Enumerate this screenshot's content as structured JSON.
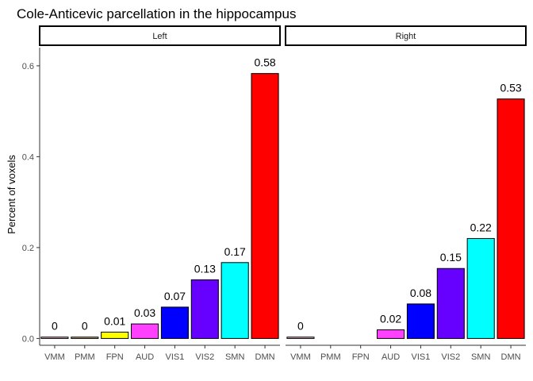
{
  "chart_data": {
    "type": "bar",
    "title": "Cole-Anticevic parcellation in the hippocampus",
    "ylabel": "Percent of voxels",
    "xlabel": "",
    "ylim": [
      -0.015,
      0.64
    ],
    "yticks": [
      0.0,
      0.2,
      0.4,
      0.6
    ],
    "ytick_labels": [
      "0.0",
      "0.2",
      "0.4",
      "0.6"
    ],
    "categories": [
      "VMM",
      "PMM",
      "FPN",
      "AUD",
      "VIS1",
      "VIS2",
      "SMN",
      "DMN"
    ],
    "colors": [
      "#FFC0CB",
      "#DEB887",
      "#FFFF00",
      "#FF40FF",
      "#0000FF",
      "#6600FF",
      "#00FFFF",
      "#FF0000"
    ],
    "grid": false,
    "facets": [
      {
        "label": "Left",
        "values": [
          0.003,
          0.003,
          0.014,
          0.032,
          0.069,
          0.129,
          0.167,
          0.583
        ],
        "labels": [
          "0",
          "0",
          "0.01",
          "0.03",
          "0.07",
          "0.13",
          "0.17",
          "0.58"
        ]
      },
      {
        "label": "Right",
        "values": [
          0.003,
          null,
          null,
          0.019,
          0.076,
          0.154,
          0.22,
          0.527
        ],
        "labels": [
          "0",
          "",
          "",
          "0.02",
          "0.08",
          "0.15",
          "0.22",
          "0.53"
        ]
      }
    ]
  }
}
